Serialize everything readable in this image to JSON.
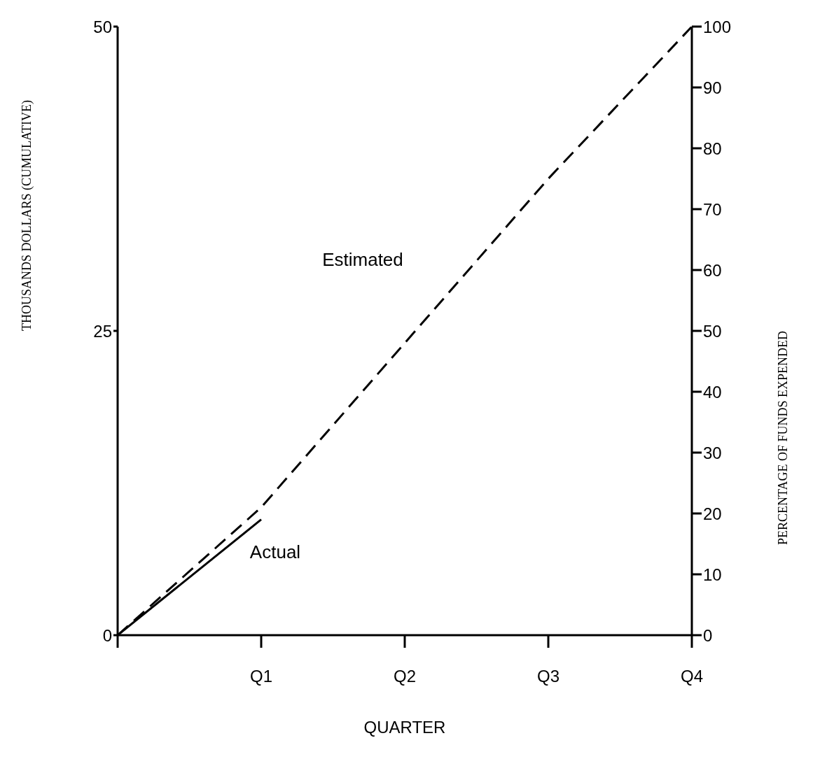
{
  "chart_data": {
    "type": "line",
    "xlabel": "QUARTER",
    "ylabel": "THOUSANDS DOLLARS (CUMULATIVE)",
    "y2label": "PERCENTAGE OF FUNDS EXPENDED",
    "categories": [
      null,
      "Q1",
      "Q2",
      "Q3",
      "Q4"
    ],
    "ylim": [
      0,
      50
    ],
    "yticks": [
      0,
      25,
      50
    ],
    "y2lim": [
      0,
      100
    ],
    "y2ticks": [
      0,
      10,
      20,
      30,
      40,
      50,
      60,
      70,
      80,
      90,
      100
    ],
    "grid": false,
    "legend": false,
    "marker": "none",
    "series": [
      {
        "name": "Estimated",
        "color": "#000000",
        "line_style": "dashed",
        "values": [
          0,
          10.5,
          24,
          37.5,
          50
        ]
      },
      {
        "name": "Actual",
        "color": "#000000",
        "line_style": "solid",
        "values": [
          0,
          9.5,
          null,
          null,
          null
        ]
      }
    ]
  }
}
